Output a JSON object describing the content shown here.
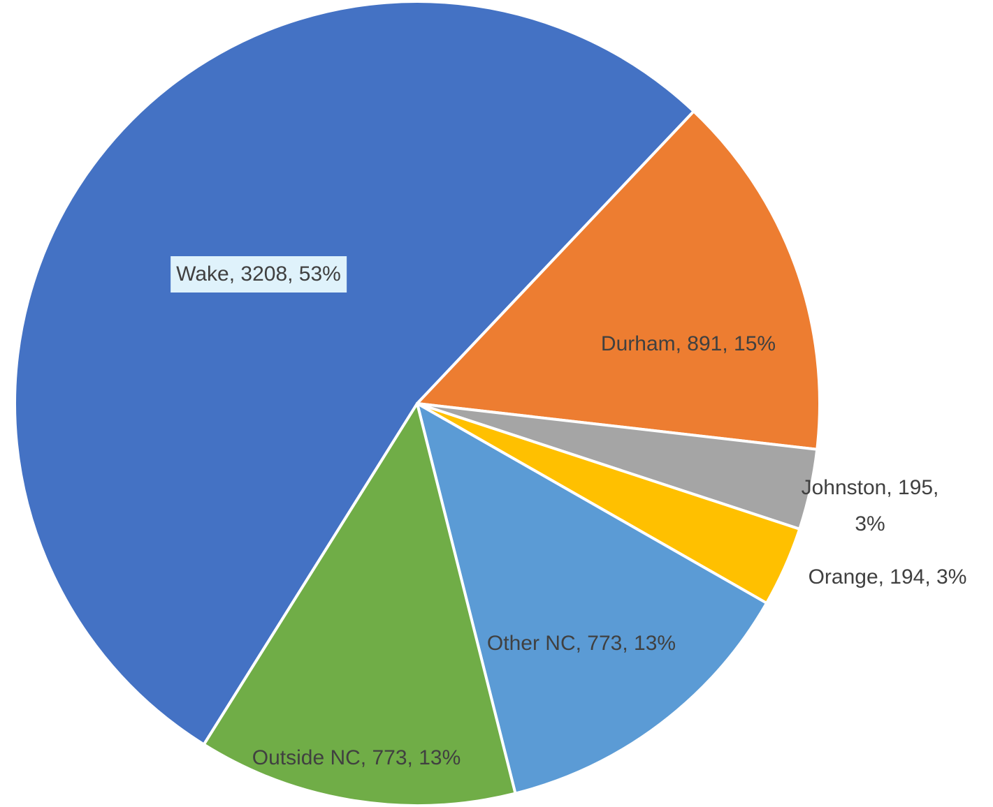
{
  "chart_data": {
    "type": "pie",
    "values": [
      3208,
      891,
      195,
      194,
      773,
      773
    ],
    "value_labels": [
      "Wake, 3208, 53%",
      "Durham, 891, 15%",
      "Johnston, 195, 3%",
      "Orange, 194, 3%",
      "Other NC, 773, 13%",
      "Outside NC, 773, 13%"
    ],
    "colors": [
      "#4472c4",
      "#ed7d31",
      "#a5a5a5",
      "#ffc000",
      "#5b9bd5",
      "#70ad47"
    ]
  }
}
